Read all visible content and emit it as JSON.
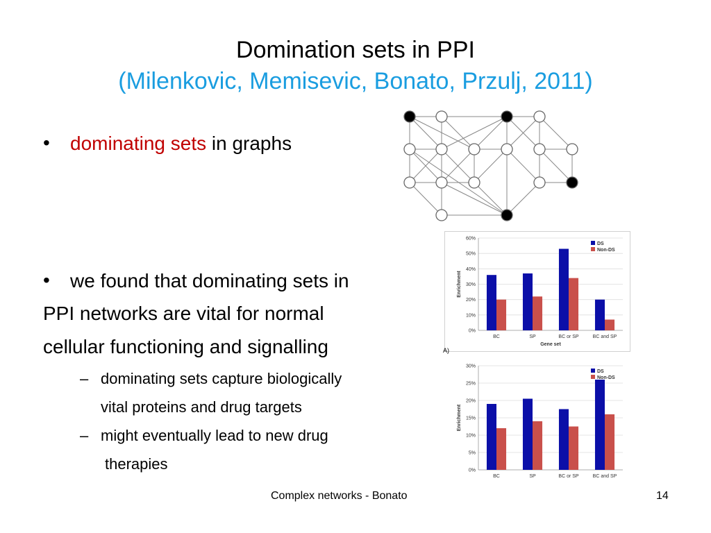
{
  "slide": {
    "title": "Domination sets in PPI",
    "subtitle": "(Milenkovic, Memisevic, Bonato, Przulj, 2011)",
    "bullet1_highlight": "dominating sets",
    "bullet1_rest": " in graphs",
    "bullet2_line1": "we found that dominating sets in",
    "bullet2_line2": "PPI networks are vital for normal",
    "bullet2_line3": "cellular functioning and signalling",
    "sub1_line1": "dominating sets capture biologically",
    "sub1_line2": "vital proteins and drug targets",
    "sub2_line1": "might eventually lead to new drug",
    "sub2_line2": "therapies",
    "bullet_symbol": "•",
    "dash_symbol": "–",
    "footer_text": "Complex networks - Bonato",
    "page_number": "14",
    "panel_marker": "A)"
  },
  "colors": {
    "title_blue": "#1a9de0",
    "highlight_red": "#c00000",
    "ds_blue": "#0b0fa8",
    "nonds_red": "#c9504b"
  },
  "graph": {
    "nodes": [
      {
        "id": "a",
        "dominating": true
      },
      {
        "id": "b",
        "dominating": false
      },
      {
        "id": "c",
        "dominating": true
      },
      {
        "id": "d",
        "dominating": false
      },
      {
        "id": "e",
        "dominating": false
      },
      {
        "id": "f",
        "dominating": false
      },
      {
        "id": "g",
        "dominating": false
      },
      {
        "id": "h",
        "dominating": false
      },
      {
        "id": "i",
        "dominating": false
      },
      {
        "id": "j",
        "dominating": false
      },
      {
        "id": "k",
        "dominating": false
      },
      {
        "id": "l",
        "dominating": false
      },
      {
        "id": "m",
        "dominating": false
      },
      {
        "id": "n",
        "dominating": false
      },
      {
        "id": "o",
        "dominating": false
      },
      {
        "id": "p",
        "dominating": true
      },
      {
        "id": "q",
        "dominating": false
      },
      {
        "id": "r",
        "dominating": true
      }
    ]
  },
  "chart_data": [
    {
      "type": "bar",
      "categories": [
        "BC",
        "SP",
        "BC or SP",
        "BC and SP"
      ],
      "series": [
        {
          "name": "DS",
          "values": [
            36,
            37,
            53,
            20
          ]
        },
        {
          "name": "Non-DS",
          "values": [
            20,
            22,
            34,
            7
          ]
        }
      ],
      "xlabel": "Gene set",
      "ylabel": "Enrichment",
      "ylim": [
        0,
        60
      ],
      "yticks": [
        "0%",
        "10%",
        "20%",
        "30%",
        "40%",
        "50%",
        "60%"
      ],
      "legend": "top-right"
    },
    {
      "type": "bar",
      "categories": [
        "BC",
        "SP",
        "BC or SP",
        "BC and SP"
      ],
      "series": [
        {
          "name": "DS",
          "values": [
            19,
            20.5,
            17.5,
            26
          ]
        },
        {
          "name": "Non-DS",
          "values": [
            12,
            14,
            12.5,
            16
          ]
        }
      ],
      "xlabel": "",
      "ylabel": "Enrichment",
      "ylim": [
        0,
        30
      ],
      "yticks": [
        "0%",
        "5%",
        "10%",
        "15%",
        "20%",
        "25%",
        "30%"
      ],
      "legend": "top-right"
    }
  ]
}
